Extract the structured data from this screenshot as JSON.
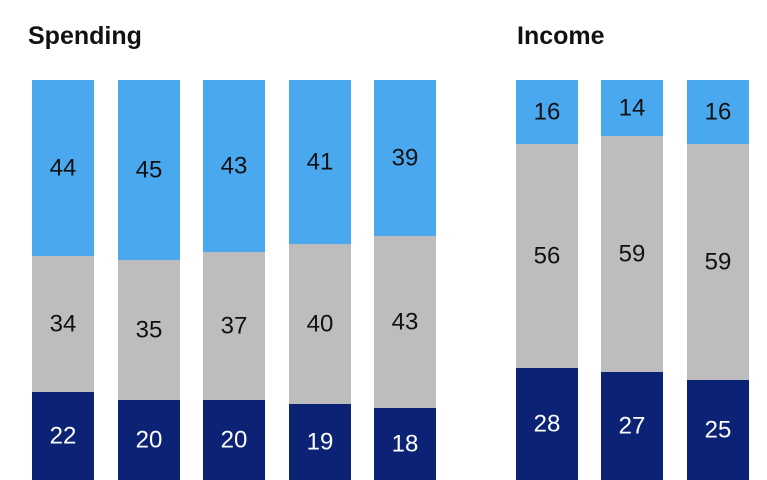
{
  "colors": {
    "top": "#4aa8ef",
    "middle": "#bdbdbd",
    "bottom": "#0c2375",
    "label_dark": "#111111",
    "label_light": "#ffffff"
  },
  "chart_data": [
    {
      "type": "bar",
      "stacked": true,
      "percent": true,
      "title": "Spending",
      "categories": [
        "",
        "",
        "",
        "",
        ""
      ],
      "series": [
        {
          "values": [
            22,
            20,
            20,
            19,
            18
          ]
        },
        {
          "values": [
            34,
            35,
            37,
            40,
            43
          ]
        },
        {
          "values": [
            44,
            45,
            43,
            41,
            39
          ]
        }
      ],
      "ylim": [
        0,
        100
      ],
      "grid": false
    },
    {
      "type": "bar",
      "stacked": true,
      "percent": true,
      "title": "Income",
      "categories": [
        "",
        "",
        ""
      ],
      "series": [
        {
          "values": [
            28,
            27,
            25
          ]
        },
        {
          "values": [
            56,
            59,
            59
          ]
        },
        {
          "values": [
            16,
            14,
            16
          ]
        }
      ],
      "ylim": [
        0,
        100
      ],
      "grid": false
    }
  ]
}
